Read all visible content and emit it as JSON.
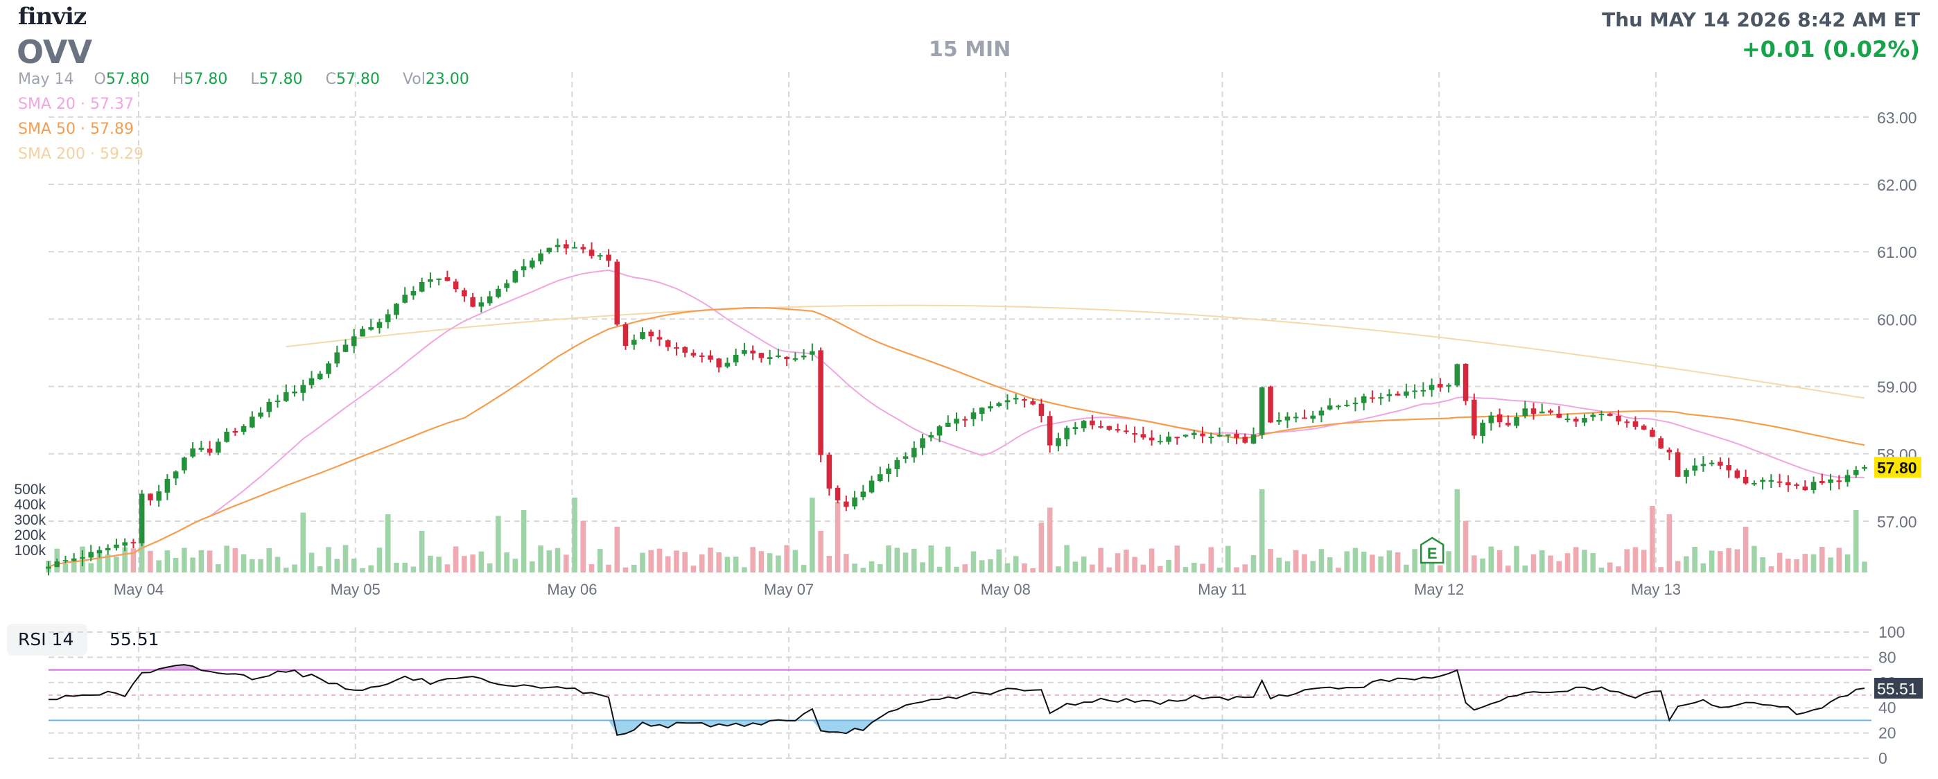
{
  "header": {
    "logo": "finviz",
    "ticker": "OVV",
    "timeframe": "15 MIN",
    "datetime": "Thu MAY 14 2026 8:42 AM ET",
    "change": "+0.01 (0.02%)",
    "ohlc": {
      "date": "May 14",
      "o_label": "O",
      "o": "57.80",
      "h_label": "H",
      "h": "57.80",
      "l_label": "L",
      "l": "57.80",
      "c_label": "C",
      "c": "57.80",
      "vol_label": "Vol",
      "vol": "23.00"
    },
    "sma": [
      {
        "label": "SMA 20",
        "value": "57.37",
        "color": "#f0a6e0"
      },
      {
        "label": "SMA 50",
        "value": "57.89",
        "color": "#f59e50"
      },
      {
        "label": "SMA 200",
        "value": "59.29",
        "color": "#f6d9a8"
      }
    ],
    "rsi_label": "RSI 14",
    "rsi_value": "55.51"
  },
  "colors": {
    "up": "#22913a",
    "down": "#d8263a",
    "vol_up": "#9fd3a8",
    "vol_down": "#eeaab0",
    "rsi_line": "#111111",
    "rsi_upper": "#c86fd6",
    "rsi_lower": "#6cb6e8",
    "rsi_upper_fill": "#c98fd8",
    "rsi_lower_fill": "#7cc4ea",
    "grid": "#d8d8d8",
    "axis_text": "#6b7280",
    "last_price_bg": "#ffe600"
  },
  "chart_data": {
    "type": "candlestick",
    "interval": "15 MIN",
    "x_labels": [
      "May 04",
      "May 05",
      "May 06",
      "May 07",
      "May 08",
      "May 11",
      "May 12",
      "May 13"
    ],
    "price_ticks": [
      "57.00",
      "58.00",
      "59.00",
      "60.00",
      "61.00",
      "62.00",
      "63.00"
    ],
    "ylim": [
      56.3,
      63.4
    ],
    "last_price": "57.80",
    "volume_ticks": [
      "100k",
      "200k",
      "300k",
      "400k",
      "500k"
    ],
    "rsi_ticks": [
      "0",
      "20",
      "40",
      "60",
      "80",
      "100"
    ],
    "rsi_levels": {
      "upper": 70,
      "lower": 30
    },
    "earnings_marker": {
      "label": "E",
      "day": "May 12"
    },
    "close_path": [
      [
        0,
        56.35
      ],
      [
        3,
        56.45
      ],
      [
        6,
        56.55
      ],
      [
        8,
        56.65
      ],
      [
        10,
        56.72
      ],
      [
        11,
        57.4
      ],
      [
        12,
        57.3
      ],
      [
        13,
        57.45
      ],
      [
        14,
        57.6
      ],
      [
        15,
        57.75
      ],
      [
        16,
        57.95
      ],
      [
        17,
        58.1
      ],
      [
        19,
        58.0
      ],
      [
        21,
        58.3
      ],
      [
        23,
        58.4
      ],
      [
        26,
        58.75
      ],
      [
        29,
        58.95
      ],
      [
        32,
        59.2
      ],
      [
        35,
        59.65
      ],
      [
        38,
        59.9
      ],
      [
        40,
        60.05
      ],
      [
        42,
        60.35
      ],
      [
        44,
        60.55
      ],
      [
        47,
        60.6
      ],
      [
        50,
        60.15
      ],
      [
        53,
        60.45
      ],
      [
        56,
        60.8
      ],
      [
        59,
        61.05
      ],
      [
        60,
        61.1
      ],
      [
        63,
        61.0
      ],
      [
        66,
        60.9
      ],
      [
        67,
        59.88
      ],
      [
        68,
        59.6
      ],
      [
        70,
        59.8
      ],
      [
        72,
        59.7
      ],
      [
        74,
        59.55
      ],
      [
        76,
        59.48
      ],
      [
        79,
        59.3
      ],
      [
        82,
        59.55
      ],
      [
        84,
        59.4
      ],
      [
        86,
        59.45
      ],
      [
        88,
        59.42
      ],
      [
        89,
        59.45
      ],
      [
        90,
        59.55
      ],
      [
        91,
        58.0
      ],
      [
        92,
        57.45
      ],
      [
        93,
        57.3
      ],
      [
        94,
        57.2
      ],
      [
        96,
        57.45
      ],
      [
        98,
        57.7
      ],
      [
        100,
        57.9
      ],
      [
        102,
        58.1
      ],
      [
        104,
        58.3
      ],
      [
        106,
        58.45
      ],
      [
        108,
        58.55
      ],
      [
        110,
        58.65
      ],
      [
        112,
        58.75
      ],
      [
        114,
        58.82
      ],
      [
        116,
        58.7
      ],
      [
        117,
        58.6
      ],
      [
        118,
        58.1
      ],
      [
        119,
        58.2
      ],
      [
        120,
        58.4
      ],
      [
        122,
        58.45
      ],
      [
        125,
        58.35
      ],
      [
        128,
        58.3
      ],
      [
        131,
        58.2
      ],
      [
        133,
        58.25
      ],
      [
        135,
        58.35
      ],
      [
        137,
        58.25
      ],
      [
        139,
        58.3
      ],
      [
        141,
        58.2
      ],
      [
        142,
        58.32
      ],
      [
        143,
        58.95
      ],
      [
        144,
        58.5
      ],
      [
        146,
        58.55
      ],
      [
        148,
        58.55
      ],
      [
        150,
        58.65
      ],
      [
        153,
        58.75
      ],
      [
        156,
        58.85
      ],
      [
        159,
        58.9
      ],
      [
        161,
        58.95
      ],
      [
        163,
        59.0
      ],
      [
        165,
        59.02
      ],
      [
        166,
        59.3
      ],
      [
        167,
        58.75
      ],
      [
        168,
        58.3
      ],
      [
        170,
        58.55
      ],
      [
        172,
        58.45
      ],
      [
        174,
        58.65
      ],
      [
        176,
        58.6
      ],
      [
        178,
        58.55
      ],
      [
        180,
        58.5
      ],
      [
        182,
        58.6
      ],
      [
        184,
        58.55
      ],
      [
        186,
        58.45
      ],
      [
        188,
        58.35
      ],
      [
        191,
        58.0
      ],
      [
        192,
        57.65
      ],
      [
        194,
        57.8
      ],
      [
        196,
        57.85
      ],
      [
        198,
        57.75
      ],
      [
        200,
        57.55
      ],
      [
        202,
        57.58
      ],
      [
        204,
        57.6
      ],
      [
        206,
        57.5
      ],
      [
        207,
        57.45
      ],
      [
        208,
        57.55
      ],
      [
        209,
        57.6
      ],
      [
        210,
        57.65
      ],
      [
        211,
        57.62
      ],
      [
        212,
        57.72
      ],
      [
        213,
        57.78
      ],
      [
        214,
        57.8
      ]
    ],
    "volume_spikes": [
      [
        11,
        0.45
      ],
      [
        30,
        0.72
      ],
      [
        40,
        0.7
      ],
      [
        44,
        0.5
      ],
      [
        53,
        0.68
      ],
      [
        56,
        0.75
      ],
      [
        62,
        0.9
      ],
      [
        63,
        0.62
      ],
      [
        67,
        0.55
      ],
      [
        90,
        0.9
      ],
      [
        91,
        0.5
      ],
      [
        93,
        0.85
      ],
      [
        117,
        0.6
      ],
      [
        118,
        0.78
      ],
      [
        143,
        1.0
      ],
      [
        166,
        1.0
      ],
      [
        167,
        0.62
      ],
      [
        189,
        0.8
      ],
      [
        191,
        0.7
      ],
      [
        200,
        0.55
      ],
      [
        213,
        0.75
      ]
    ],
    "rsi_path": [
      [
        0,
        46
      ],
      [
        5,
        52
      ],
      [
        9,
        50
      ],
      [
        11,
        67
      ],
      [
        13,
        70
      ],
      [
        16,
        73
      ],
      [
        20,
        68
      ],
      [
        24,
        64
      ],
      [
        28,
        70
      ],
      [
        32,
        63
      ],
      [
        35,
        56
      ],
      [
        38,
        55
      ],
      [
        42,
        64
      ],
      [
        45,
        60
      ],
      [
        50,
        63
      ],
      [
        54,
        56
      ],
      [
        60,
        57
      ],
      [
        66,
        48
      ],
      [
        67,
        20
      ],
      [
        68,
        18
      ],
      [
        70,
        28
      ],
      [
        73,
        26
      ],
      [
        77,
        27
      ],
      [
        80,
        26
      ],
      [
        84,
        28
      ],
      [
        88,
        31
      ],
      [
        90,
        38
      ],
      [
        91,
        20
      ],
      [
        93,
        19
      ],
      [
        96,
        24
      ],
      [
        99,
        35
      ],
      [
        102,
        43
      ],
      [
        106,
        48
      ],
      [
        110,
        52
      ],
      [
        114,
        54
      ],
      [
        117,
        53
      ],
      [
        118,
        35
      ],
      [
        120,
        43
      ],
      [
        125,
        47
      ],
      [
        130,
        44
      ],
      [
        135,
        48
      ],
      [
        140,
        47
      ],
      [
        142,
        50
      ],
      [
        143,
        62
      ],
      [
        144,
        47
      ],
      [
        147,
        53
      ],
      [
        151,
        55
      ],
      [
        155,
        58
      ],
      [
        159,
        63
      ],
      [
        161,
        64
      ],
      [
        165,
        66
      ],
      [
        166,
        68
      ],
      [
        167,
        42
      ],
      [
        168,
        38
      ],
      [
        171,
        47
      ],
      [
        175,
        52
      ],
      [
        179,
        54
      ],
      [
        183,
        56
      ],
      [
        186,
        48
      ],
      [
        190,
        52
      ],
      [
        191,
        30
      ],
      [
        192,
        40
      ],
      [
        195,
        45
      ],
      [
        198,
        40
      ],
      [
        201,
        44
      ],
      [
        204,
        42
      ],
      [
        206,
        36
      ],
      [
        208,
        38
      ],
      [
        210,
        44
      ],
      [
        212,
        50
      ],
      [
        214,
        55.5
      ]
    ]
  }
}
